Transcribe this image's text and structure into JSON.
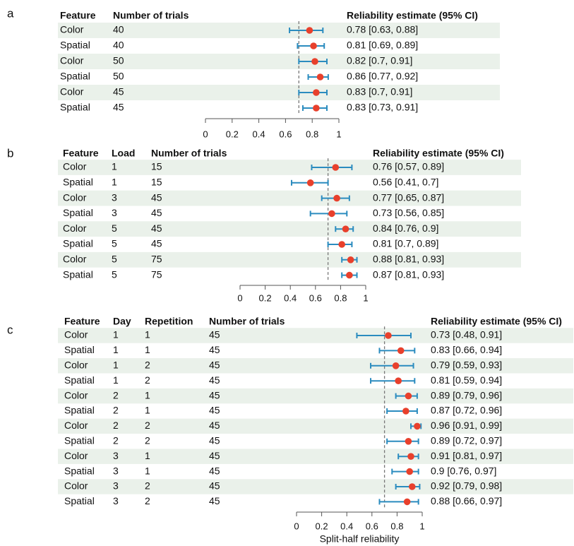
{
  "chart_data": [
    {
      "type": "forest",
      "panel_label": "a",
      "headers": [
        "Feature",
        "Number of trials",
        "Reliability estimate (95% CI)"
      ],
      "rows": [
        [
          "Color",
          "40"
        ],
        [
          "Spatial",
          "40"
        ],
        [
          "Color",
          "50"
        ],
        [
          "Spatial",
          "50"
        ],
        [
          "Color",
          "45"
        ],
        [
          "Spatial",
          "45"
        ]
      ],
      "estimates": [
        0.78,
        0.81,
        0.82,
        0.86,
        0.83,
        0.83
      ],
      "ci_low": [
        0.63,
        0.69,
        0.7,
        0.77,
        0.7,
        0.73
      ],
      "ci_high": [
        0.88,
        0.89,
        0.91,
        0.92,
        0.91,
        0.91
      ],
      "ci_text": [
        "0.78 [0.63, 0.88]",
        "0.81 [0.69, 0.89]",
        "0.82 [0.7, 0.91]",
        "0.86 [0.77, 0.92]",
        "0.83 [0.7, 0.91]",
        "0.83 [0.73, 0.91]"
      ],
      "reference_line": 0.7,
      "xlim": [
        0,
        1
      ],
      "xticks": [
        "0",
        "0.2",
        "0.4",
        "0.6",
        "0.8",
        "1"
      ],
      "xlabel": ""
    },
    {
      "type": "forest",
      "panel_label": "b",
      "headers": [
        "Feature",
        "Load",
        "Number of trials",
        "Reliability estimate (95% CI)"
      ],
      "rows": [
        [
          "Color",
          "1",
          "15"
        ],
        [
          "Spatial",
          "1",
          "15"
        ],
        [
          "Color",
          "3",
          "45"
        ],
        [
          "Spatial",
          "3",
          "45"
        ],
        [
          "Color",
          "5",
          "45"
        ],
        [
          "Spatial",
          "5",
          "45"
        ],
        [
          "Color",
          "5",
          "75"
        ],
        [
          "Spatial",
          "5",
          "75"
        ]
      ],
      "estimates": [
        0.76,
        0.56,
        0.77,
        0.73,
        0.84,
        0.81,
        0.88,
        0.87
      ],
      "ci_low": [
        0.57,
        0.41,
        0.65,
        0.56,
        0.76,
        0.7,
        0.81,
        0.81
      ],
      "ci_high": [
        0.89,
        0.7,
        0.87,
        0.85,
        0.9,
        0.89,
        0.93,
        0.93
      ],
      "ci_text": [
        "0.76 [0.57, 0.89]",
        "0.56 [0.41, 0.7]",
        "0.77 [0.65, 0.87]",
        "0.73 [0.56, 0.85]",
        "0.84 [0.76, 0.9]",
        "0.81 [0.7, 0.89]",
        "0.88 [0.81, 0.93]",
        "0.87 [0.81, 0.93]"
      ],
      "reference_line": 0.7,
      "xlim": [
        0,
        1
      ],
      "xticks": [
        "0",
        "0.2",
        "0.4",
        "0.6",
        "0.8",
        "1"
      ],
      "xlabel": ""
    },
    {
      "type": "forest",
      "panel_label": "c",
      "headers": [
        "Feature",
        "Day",
        "Repetition",
        "Number of trials",
        "Reliability estimate (95% CI)"
      ],
      "rows": [
        [
          "Color",
          "1",
          "1",
          "45"
        ],
        [
          "Spatial",
          "1",
          "1",
          "45"
        ],
        [
          "Color",
          "1",
          "2",
          "45"
        ],
        [
          "Spatial",
          "1",
          "2",
          "45"
        ],
        [
          "Color",
          "2",
          "1",
          "45"
        ],
        [
          "Spatial",
          "2",
          "1",
          "45"
        ],
        [
          "Color",
          "2",
          "2",
          "45"
        ],
        [
          "Spatial",
          "2",
          "2",
          "45"
        ],
        [
          "Color",
          "3",
          "1",
          "45"
        ],
        [
          "Spatial",
          "3",
          "1",
          "45"
        ],
        [
          "Color",
          "3",
          "2",
          "45"
        ],
        [
          "Spatial",
          "3",
          "2",
          "45"
        ]
      ],
      "estimates": [
        0.73,
        0.83,
        0.79,
        0.81,
        0.89,
        0.87,
        0.96,
        0.89,
        0.91,
        0.9,
        0.92,
        0.88
      ],
      "ci_low": [
        0.48,
        0.66,
        0.59,
        0.59,
        0.79,
        0.72,
        0.91,
        0.72,
        0.81,
        0.76,
        0.79,
        0.66
      ],
      "ci_high": [
        0.91,
        0.94,
        0.93,
        0.94,
        0.96,
        0.96,
        0.99,
        0.97,
        0.97,
        0.97,
        0.98,
        0.97
      ],
      "ci_text": [
        "0.73 [0.48, 0.91]",
        "0.83 [0.66, 0.94]",
        "0.79 [0.59, 0.93]",
        "0.81 [0.59, 0.94]",
        "0.89 [0.79, 0.96]",
        "0.87 [0.72, 0.96]",
        "0.96 [0.91, 0.99]",
        "0.89 [0.72, 0.97]",
        "0.91 [0.81, 0.97]",
        "0.9 [0.76, 0.97]",
        "0.92 [0.79, 0.98]",
        "0.88 [0.66, 0.97]"
      ],
      "reference_line": 0.7,
      "xlim": [
        0,
        1
      ],
      "xticks": [
        "0",
        "0.2",
        "0.4",
        "0.6",
        "0.8",
        "1"
      ],
      "xlabel": "Split-half reliability"
    }
  ],
  "colors": {
    "point": "#e8402c",
    "ci": "#2b8cbf",
    "band": "#eaf1ea",
    "refline": "#777777",
    "axis": "#555555"
  }
}
